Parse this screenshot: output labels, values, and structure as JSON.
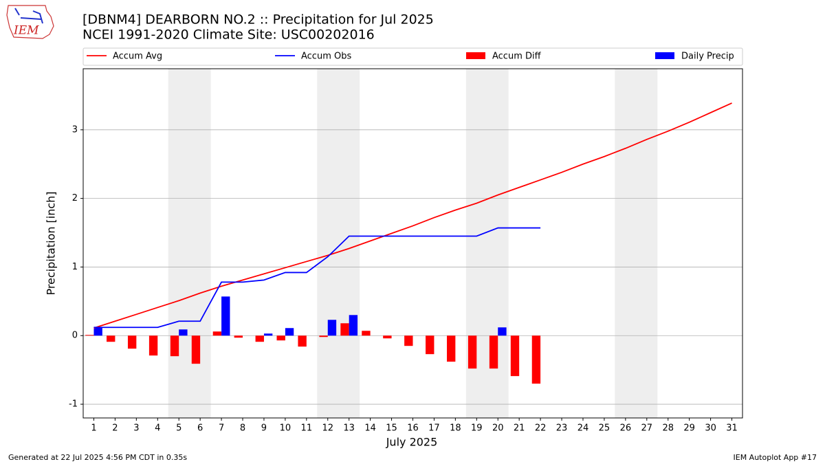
{
  "chart_data": {
    "type": "bar_line",
    "title": "[DBNM4] DEARBORN NO.2 :: Precipitation for Jul 2025",
    "subtitle": "NCEI 1991-2020 Climate Site: USC00202016",
    "logo_text": "IEM",
    "ylabel": "Precipitation [inch]",
    "xlabel": "July 2025",
    "footer_left": "Generated at 22 Jul 2025 4:56 PM CDT in 0.35s",
    "footer_right": "IEM Autoplot App #17",
    "x": [
      1,
      2,
      3,
      4,
      5,
      6,
      7,
      8,
      9,
      10,
      11,
      12,
      13,
      14,
      15,
      16,
      17,
      18,
      19,
      20,
      21,
      22,
      23,
      24,
      25,
      26,
      27,
      28,
      29,
      30,
      31
    ],
    "xlim": [
      0.5,
      31.5
    ],
    "xticks": [
      1,
      2,
      3,
      4,
      5,
      6,
      7,
      8,
      9,
      10,
      11,
      12,
      13,
      14,
      15,
      16,
      17,
      18,
      19,
      20,
      21,
      22,
      23,
      24,
      25,
      26,
      27,
      28,
      29,
      30,
      31
    ],
    "ylim": [
      -1.2,
      3.89
    ],
    "yticks": [
      -1,
      0,
      1,
      2,
      3
    ],
    "grid": true,
    "shaded_spans": [
      [
        4.5,
        6.5
      ],
      [
        11.5,
        13.5
      ],
      [
        18.5,
        20.5
      ],
      [
        25.5,
        27.5
      ]
    ],
    "series": [
      {
        "name": "Accum Avg",
        "kind": "line",
        "color": "#ff0000",
        "values": [
          0.11,
          0.21,
          0.31,
          0.41,
          0.51,
          0.62,
          0.72,
          0.81,
          0.9,
          0.99,
          1.08,
          1.17,
          1.27,
          1.38,
          1.49,
          1.6,
          1.72,
          1.83,
          1.93,
          2.05,
          2.16,
          2.27,
          2.38,
          2.5,
          2.61,
          2.73,
          2.86,
          2.98,
          3.11,
          3.25,
          3.39
        ]
      },
      {
        "name": "Accum Obs",
        "kind": "line",
        "color": "#0000ff",
        "values": [
          0.12,
          0.12,
          0.12,
          0.12,
          0.21,
          0.21,
          0.78,
          0.78,
          0.81,
          0.92,
          0.92,
          1.15,
          1.45,
          1.45,
          1.45,
          1.45,
          1.45,
          1.45,
          1.45,
          1.57,
          1.57,
          1.57,
          null,
          null,
          null,
          null,
          null,
          null,
          null,
          null,
          null
        ]
      },
      {
        "name": "Accum Diff",
        "kind": "bar",
        "color": "#ff0000",
        "values": [
          0.01,
          -0.09,
          -0.19,
          -0.29,
          -0.3,
          -0.41,
          0.06,
          -0.03,
          -0.09,
          -0.07,
          -0.16,
          -0.02,
          0.18,
          0.07,
          -0.04,
          -0.15,
          -0.27,
          -0.38,
          -0.48,
          -0.48,
          -0.59,
          -0.7,
          null,
          null,
          null,
          null,
          null,
          null,
          null,
          null,
          null
        ]
      },
      {
        "name": "Daily Precip",
        "kind": "bar",
        "color": "#0000ff",
        "values": [
          0.12,
          0,
          0,
          0,
          0.09,
          0,
          0.57,
          0,
          0.03,
          0.11,
          0,
          0.23,
          0.3,
          0,
          0,
          0,
          0,
          0,
          0,
          0.12,
          0,
          0,
          null,
          null,
          null,
          null,
          null,
          null,
          null,
          null,
          null
        ]
      }
    ]
  }
}
